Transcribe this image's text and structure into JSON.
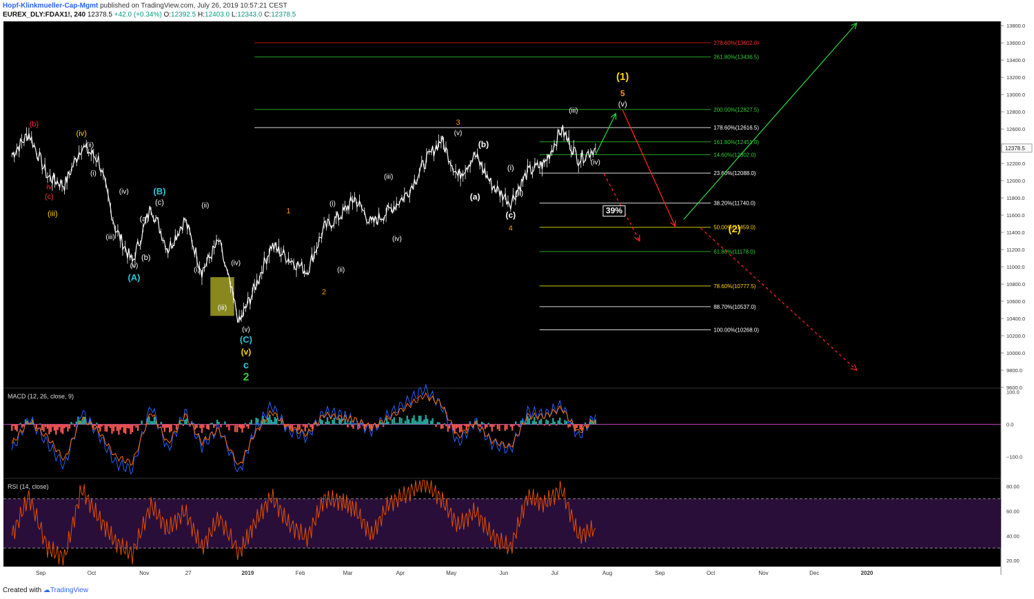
{
  "header": {
    "author": "Hopf-Klinkmueller-Cap-Mgmt",
    "published": "published on TradingView.com, July 26, 2019 10:57:21 CEST",
    "symbol": "EUREX_DLY:FDAX1!, 240",
    "last": "12378.5",
    "change": "+42.0 (+0.34%)",
    "o_label": "O:",
    "o_value": "12392.5",
    "h_label": "H:",
    "h_value": "12403.0",
    "l_label": "L:",
    "l_value": "12343.0",
    "c_label": "C:",
    "c_value": "12378.5"
  },
  "footer": {
    "created_with": "Created with",
    "brand": "TradingView"
  },
  "colors": {
    "background": "#000000",
    "price": "#ffffff",
    "fib_red": "#cc1111",
    "fib_green": "#22aa22",
    "fib_white": "#dddddd",
    "fib_yellow": "#cccc00",
    "macd": "#2962ff",
    "signal": "#ff6d00",
    "hist_pos": "#26a69a",
    "hist_neg": "#ef5350",
    "rsi": "#e65100",
    "orange_label": "#ff9800",
    "cyan_label": "#26c6da",
    "yellow_label": "#ffd600"
  },
  "chart_data": [
    {
      "type": "line",
      "title": "",
      "last_price_label": "12378.5",
      "x": [
        "2018-08-15",
        "2018-08-25",
        "2018-09-05",
        "2018-09-15",
        "2018-09-25",
        "2018-10-05",
        "2018-10-15",
        "2018-10-25",
        "2018-11-05",
        "2018-11-15",
        "2018-11-25",
        "2018-12-05",
        "2018-12-15",
        "2018-12-27",
        "2019-01-05",
        "2019-01-15",
        "2019-01-25",
        "2019-02-05",
        "2019-02-15",
        "2019-02-25",
        "2019-03-05",
        "2019-03-15",
        "2019-03-25",
        "2019-04-05",
        "2019-04-15",
        "2019-04-25",
        "2019-05-05",
        "2019-05-15",
        "2019-05-25",
        "2019-06-05",
        "2019-06-15",
        "2019-06-25",
        "2019-07-05",
        "2019-07-15",
        "2019-07-25"
      ],
      "y": [
        12300,
        12550,
        12050,
        11950,
        12400,
        12250,
        11450,
        11050,
        11700,
        11200,
        11550,
        10950,
        11300,
        10350,
        10750,
        11250,
        11100,
        10950,
        11450,
        11600,
        11800,
        11500,
        11650,
        11850,
        12200,
        12480,
        12050,
        12300,
        11950,
        11750,
        12100,
        12200,
        12600,
        12250,
        12378.5
      ],
      "x_ticks": [
        "Sep",
        "Oct",
        "Nov",
        "27",
        "2019",
        "Feb",
        "Mar",
        "Apr",
        "May",
        "Jun",
        "Jul",
        "Aug",
        "Sep",
        "Oct",
        "Nov",
        "Dec",
        "2020"
      ],
      "y_ticks": [
        13800,
        13600,
        13400,
        13200,
        13000,
        12800,
        12600,
        12400,
        12200,
        12000,
        11800,
        11600,
        11400,
        11200,
        11000,
        10800,
        10600,
        10400,
        10200,
        10000,
        9800,
        9600
      ],
      "y_range": [
        9600,
        13850
      ],
      "fib_levels": [
        {
          "label": "278.60%(13602.0)",
          "value": 13602.0,
          "color": "red"
        },
        {
          "label": "261.80%(13436.5)",
          "value": 13436.5,
          "color": "green"
        },
        {
          "label": "200.00%(12827.5)",
          "value": 12827.5,
          "color": "green"
        },
        {
          "label": "178.60%(12616.5)",
          "value": 12616.5,
          "color": "white"
        },
        {
          "label": "161.80%(12451.0)",
          "value": 12451.0,
          "color": "green"
        },
        {
          "label": "14.60%(12302.0)",
          "value": 12302.0,
          "color": "green"
        },
        {
          "label": "23.60%(12088.0)",
          "value": 12088.0,
          "color": "white"
        },
        {
          "label": "38.20%(11740.0)",
          "value": 11740.0,
          "color": "white"
        },
        {
          "label": "50.00%(11459.0)",
          "value": 11459.0,
          "color": "yellow"
        },
        {
          "label": "61.80%(11178.0)",
          "value": 11178.0,
          "color": "green"
        },
        {
          "label": "78.60%(10777.5)",
          "value": 10777.5,
          "color": "yellow"
        },
        {
          "label": "88.70%(10537.0)",
          "value": 10537.0,
          "color": "white"
        },
        {
          "label": "100.00%(10268.0)",
          "value": 10268.0,
          "color": "white"
        }
      ],
      "annotations": [
        {
          "text": "(1)",
          "date": "2019-08-10",
          "price": 13170,
          "color": "yellow",
          "size": 15
        },
        {
          "text": "5",
          "date": "2019-08-10",
          "price": 12980,
          "color": "orange",
          "size": 12
        },
        {
          "text": "(v)",
          "date": "2019-08-10",
          "price": 12860,
          "color": "white",
          "size": 11
        },
        {
          "text": "(2)",
          "date": "2019-10-15",
          "price": 11400,
          "color": "yellow",
          "size": 15
        },
        {
          "text": "39%",
          "date": "2019-08-05",
          "price": 11620,
          "color": "white",
          "size": 12,
          "boxed": true
        },
        {
          "text": "3",
          "date": "2019-05-05",
          "price": 12650,
          "color": "orange",
          "size": 11
        },
        {
          "text": "(v)",
          "date": "2019-05-05",
          "price": 12530,
          "color": "white",
          "size": 10
        },
        {
          "text": "(iii)",
          "date": "2019-07-12",
          "price": 12790,
          "color": "white",
          "size": 10
        },
        {
          "text": "(iv)",
          "date": "2019-07-25",
          "price": 12190,
          "color": "white",
          "size": 10
        },
        {
          "text": "(b)",
          "date": "2019-05-20",
          "price": 12390,
          "color": "white",
          "size": 12
        },
        {
          "text": "(a)",
          "date": "2019-05-15",
          "price": 11780,
          "color": "white",
          "size": 12
        },
        {
          "text": "(i)",
          "date": "2019-06-05",
          "price": 12120,
          "color": "white",
          "size": 11
        },
        {
          "text": "(ii)",
          "date": "2019-06-10",
          "price": 11830,
          "color": "white",
          "size": 11
        },
        {
          "text": "(c)",
          "date": "2019-06-05",
          "price": 11570,
          "color": "white",
          "size": 12
        },
        {
          "text": "4",
          "date": "2019-06-05",
          "price": 11420,
          "color": "orange",
          "size": 11
        },
        {
          "text": "(iii)",
          "date": "2019-03-25",
          "price": 12020,
          "color": "white",
          "size": 10
        },
        {
          "text": "(iv)",
          "date": "2019-03-30",
          "price": 11300,
          "color": "white",
          "size": 10
        },
        {
          "text": "1",
          "date": "2019-01-25",
          "price": 11620,
          "color": "orange",
          "size": 11
        },
        {
          "text": "(i)",
          "date": "2019-02-20",
          "price": 11710,
          "color": "white",
          "size": 10
        },
        {
          "text": "(ii)",
          "date": "2019-02-25",
          "price": 10940,
          "color": "white",
          "size": 10
        },
        {
          "text": "2",
          "date": "2019-02-15",
          "price": 10680,
          "color": "orange",
          "size": 11
        },
        {
          "text": "(iv)",
          "date": "2018-12-25",
          "price": 11020,
          "color": "white",
          "size": 10
        },
        {
          "text": "(iii)",
          "date": "2018-12-17",
          "price": 10500,
          "color": "white",
          "size": 10
        },
        {
          "text": "(v)",
          "date": "2018-12-31",
          "price": 10250,
          "color": "white",
          "size": 10
        },
        {
          "text": "(C)",
          "date": "2018-12-31",
          "price": 10120,
          "color": "cyan",
          "size": 13
        },
        {
          "text": "(v)",
          "date": "2018-12-31",
          "price": 9980,
          "color": "yellow",
          "size": 12
        },
        {
          "text": "c",
          "date": "2018-12-31",
          "price": 9820,
          "color": "cyan",
          "size": 15
        },
        {
          "text": "2",
          "date": "2018-12-31",
          "price": 9680,
          "color": "green",
          "size": 16
        },
        {
          "text": "(ii)",
          "date": "2018-12-07",
          "price": 11690,
          "color": "white",
          "size": 10
        },
        {
          "text": "(i)",
          "date": "2018-12-02",
          "price": 10940,
          "color": "white",
          "size": 10
        },
        {
          "text": "(B)",
          "date": "2018-11-10",
          "price": 11840,
          "color": "cyan",
          "size": 13
        },
        {
          "text": "(c)",
          "date": "2018-11-10",
          "price": 11720,
          "color": "white",
          "size": 11
        },
        {
          "text": "(a)",
          "date": "2018-11-01",
          "price": 11530,
          "color": "white",
          "size": 11
        },
        {
          "text": "(b)",
          "date": "2018-11-02",
          "price": 11080,
          "color": "white",
          "size": 11
        },
        {
          "text": "(v)",
          "date": "2018-10-26",
          "price": 10990,
          "color": "white",
          "size": 10
        },
        {
          "text": "(A)",
          "date": "2018-10-26",
          "price": 10840,
          "color": "cyan",
          "size": 13
        },
        {
          "text": "(iv)",
          "date": "2018-10-20",
          "price": 11850,
          "color": "white",
          "size": 10
        },
        {
          "text": "(iii)",
          "date": "2018-10-12",
          "price": 11320,
          "color": "white",
          "size": 10
        },
        {
          "text": "(iv)",
          "date": "2018-09-25",
          "price": 12520,
          "color": "yellow",
          "size": 11
        },
        {
          "text": "(ii)",
          "date": "2018-09-30",
          "price": 12390,
          "color": "white",
          "size": 10
        },
        {
          "text": "(i)",
          "date": "2018-10-02",
          "price": 12060,
          "color": "white",
          "size": 10
        },
        {
          "text": "(b)",
          "date": "2018-08-28",
          "price": 12630,
          "color": "red",
          "size": 11
        },
        {
          "text": "iv",
          "date": "2018-09-06",
          "price": 11900,
          "color": "red",
          "size": 11
        },
        {
          "text": "(c)",
          "date": "2018-09-06",
          "price": 11790,
          "color": "red",
          "size": 11
        },
        {
          "text": "(iii)",
          "date": "2018-09-08",
          "price": 11590,
          "color": "yellow",
          "size": 11
        }
      ],
      "projections": [
        {
          "from": [
            "2019-07-25",
            12300
          ],
          "to": [
            "2019-08-06",
            12780
          ],
          "color": "green",
          "dashed": false
        },
        {
          "from": [
            "2019-08-10",
            12820
          ],
          "to": [
            "2019-09-10",
            11470
          ],
          "color": "red",
          "dashed": false
        },
        {
          "from": [
            "2019-09-15",
            11550
          ],
          "to": [
            "2019-12-26",
            13830
          ],
          "color": "green",
          "dashed": false
        },
        {
          "from": [
            "2019-07-30",
            12080
          ],
          "to": [
            "2019-08-20",
            11300
          ],
          "color": "red",
          "dashed": true
        },
        {
          "from": [
            "2019-09-25",
            11450
          ],
          "to": [
            "2019-12-26",
            9800
          ],
          "color": "red",
          "dashed": true
        }
      ]
    },
    {
      "type": "line",
      "title": "MACD (12, 26, close, 9)",
      "y_ticks": [
        "100.0",
        "0.0",
        "−100.0"
      ],
      "y_range": [
        -165,
        110
      ],
      "x": [
        "2018-08-15",
        "2018-08-25",
        "2018-09-05",
        "2018-09-15",
        "2018-09-25",
        "2018-10-05",
        "2018-10-15",
        "2018-10-25",
        "2018-11-05",
        "2018-11-15",
        "2018-11-25",
        "2018-12-05",
        "2018-12-15",
        "2018-12-27",
        "2019-01-05",
        "2019-01-15",
        "2019-01-25",
        "2019-02-05",
        "2019-02-15",
        "2019-02-25",
        "2019-03-05",
        "2019-03-15",
        "2019-03-25",
        "2019-04-05",
        "2019-04-15",
        "2019-04-25",
        "2019-05-05",
        "2019-05-15",
        "2019-05-25",
        "2019-06-05",
        "2019-06-15",
        "2019-06-25",
        "2019-07-05",
        "2019-07-15",
        "2019-07-25"
      ],
      "series": [
        {
          "name": "MACD",
          "values": [
            -80,
            20,
            -60,
            -130,
            40,
            -30,
            -120,
            -140,
            60,
            -80,
            40,
            -70,
            -10,
            -150,
            -20,
            60,
            -20,
            -40,
            40,
            30,
            10,
            -20,
            30,
            70,
            110,
            60,
            -60,
            10,
            -60,
            -80,
            40,
            30,
            60,
            -40,
            30
          ]
        },
        {
          "name": "Signal",
          "values": [
            -60,
            10,
            -40,
            -110,
            20,
            -20,
            -100,
            -120,
            40,
            -60,
            30,
            -55,
            -15,
            -130,
            -30,
            40,
            -10,
            -30,
            30,
            20,
            15,
            -10,
            20,
            55,
            90,
            65,
            -40,
            5,
            -50,
            -70,
            25,
            25,
            50,
            -25,
            15
          ]
        },
        {
          "name": "Histogram",
          "values": [
            -20,
            10,
            -20,
            -20,
            20,
            -10,
            -20,
            -20,
            20,
            -20,
            10,
            -15,
            5,
            -20,
            10,
            20,
            -10,
            -10,
            10,
            10,
            -5,
            -10,
            10,
            15,
            20,
            -5,
            -20,
            5,
            -10,
            -10,
            15,
            5,
            10,
            -15,
            15
          ]
        }
      ]
    },
    {
      "type": "line",
      "title": "RSI (14, close)",
      "y_ticks": [
        80,
        60,
        40,
        20
      ],
      "y_range": [
        15,
        86
      ],
      "band": [
        30,
        70
      ],
      "x": [
        "2018-08-15",
        "2018-08-25",
        "2018-09-05",
        "2018-09-15",
        "2018-09-25",
        "2018-10-05",
        "2018-10-15",
        "2018-10-25",
        "2018-11-05",
        "2018-11-15",
        "2018-11-25",
        "2018-12-05",
        "2018-12-15",
        "2018-12-27",
        "2019-01-05",
        "2019-01-15",
        "2019-01-25",
        "2019-02-05",
        "2019-02-15",
        "2019-02-25",
        "2019-03-05",
        "2019-03-15",
        "2019-03-25",
        "2019-04-05",
        "2019-04-15",
        "2019-04-25",
        "2019-05-05",
        "2019-05-15",
        "2019-05-25",
        "2019-06-05",
        "2019-06-15",
        "2019-06-25",
        "2019-07-05",
        "2019-07-15",
        "2019-07-25"
      ],
      "values": [
        40,
        72,
        30,
        22,
        78,
        55,
        35,
        25,
        65,
        45,
        60,
        30,
        55,
        26,
        50,
        72,
        50,
        38,
        70,
        68,
        62,
        40,
        66,
        74,
        84,
        70,
        48,
        60,
        40,
        30,
        72,
        66,
        78,
        40,
        46
      ]
    }
  ]
}
